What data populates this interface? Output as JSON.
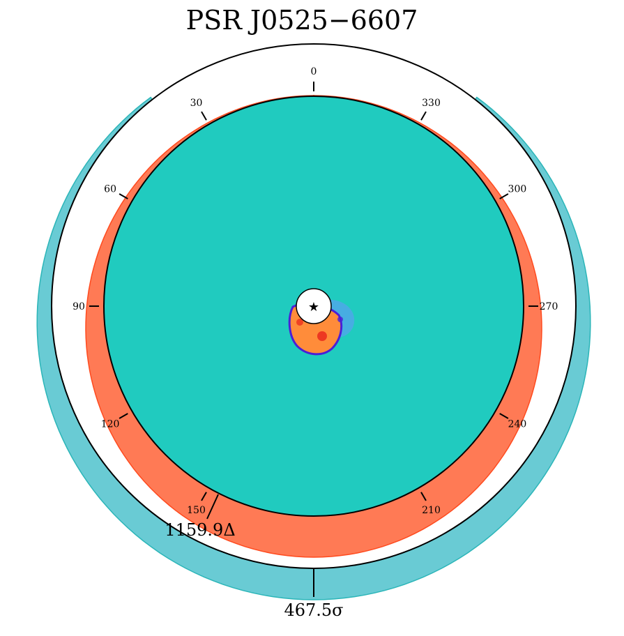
{
  "chart_data": {
    "type": "polar-map",
    "title": "PSR J0525−6607",
    "angle_ticks": [
      "0",
      "30",
      "60",
      "90",
      "120",
      "150",
      "210",
      "240",
      "270",
      "300",
      "330"
    ],
    "tick_angles_deg": [
      0,
      30,
      60,
      90,
      120,
      150,
      210,
      240,
      270,
      300,
      330
    ],
    "dm_label": "1159.9Δ",
    "sigma_label": "467.5σ",
    "center_marker": "★",
    "colors": {
      "disk": "#20cbbf",
      "dm_band": "#ff7a55",
      "dm_band_edge": "#ff4a1e",
      "sigma_band": "#69cbd4",
      "sigma_band_edge": "#2bb5b8",
      "hot_blob": "#ff8c3a",
      "blob_edge": "#4b1fd6",
      "cold_blob": "#4fa8e8"
    }
  }
}
